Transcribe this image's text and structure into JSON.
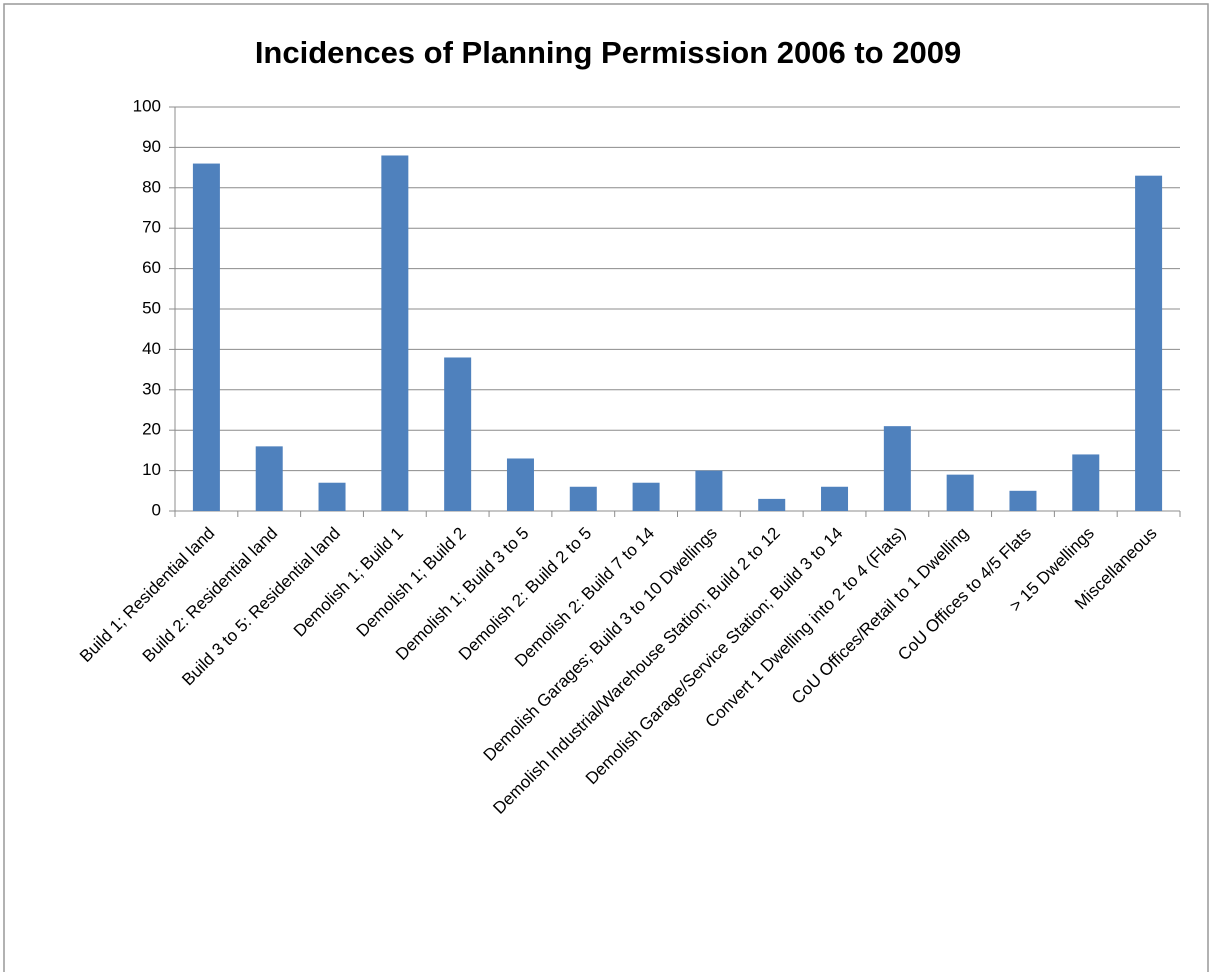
{
  "chart_data": {
    "type": "bar",
    "title": "Incidences of Planning Permission 2006 to 2009",
    "categories": [
      "Build 1; Residential land",
      "Build 2: Residential land",
      "Build 3 to 5: Residential land",
      "Demolish 1; Build 1",
      "Demolish 1; Build 2",
      "Demolish 1; Build 3 to 5",
      "Demolish 2: Build 2 to 5",
      "Demolish 2: Build 7 to 14",
      "Demolish Garages; Build 3 to 10 Dwellings",
      "Demolish Industrial/Warehouse Station; Build 2 to 12",
      "Demolish Garage/Service Station; Build 3 to 14",
      "Convert 1 Dwelling into 2 to 4 (Flats)",
      "CoU Offices/Retail to 1 Dwelling",
      "CoU Offices to 4/5 Flats",
      "> 15 Dwellings",
      "Miscellaneous"
    ],
    "values": [
      86,
      16,
      7,
      88,
      38,
      13,
      6,
      7,
      10,
      3,
      6,
      21,
      9,
      5,
      14,
      83
    ],
    "color": "#4f81bd",
    "ylim": [
      0,
      100
    ],
    "yticks": [
      0,
      10,
      20,
      30,
      40,
      50,
      60,
      70,
      80,
      90,
      100
    ],
    "grid": true
  }
}
